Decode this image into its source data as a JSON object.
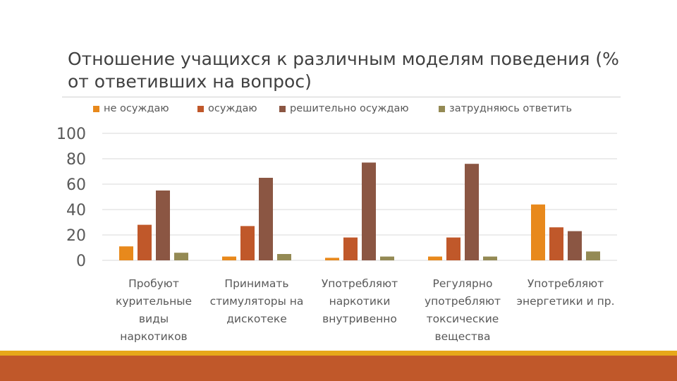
{
  "slide": {
    "title": "Отношение учащихся к различным моделям поведения (% от ответивших на вопрос)"
  },
  "colors": {
    "series": [
      "#e8891c",
      "#c0582a",
      "#8b5643",
      "#948a54"
    ],
    "grid": "#d9d9d9",
    "axis_text": "#595959",
    "accent_bar": "#e7a81a",
    "footer": "#c0582a"
  },
  "chart_data": {
    "type": "bar",
    "title": "",
    "xlabel": "",
    "ylabel": "",
    "ylim": [
      0,
      100
    ],
    "yticks": [
      0,
      20,
      40,
      60,
      80,
      100
    ],
    "grid": true,
    "legend_position": "top",
    "categories": [
      "Пробуют курительные виды наркотиков",
      "Принимать стимуляторы на дискотеке",
      "Употребляют наркотики внутривенно",
      "Регулярно употребляют токсические вещества",
      "Употребляют энергетики и пр."
    ],
    "category_lines": [
      [
        "Пробуют",
        "курительные",
        "виды",
        "наркотиков"
      ],
      [
        "Принимать",
        "стимуляторы на",
        "дискотеке"
      ],
      [
        "Употребляют",
        "наркотики",
        "внутривенно"
      ],
      [
        "Регулярно",
        "употребляют",
        "токсические",
        "вещества"
      ],
      [
        "Употребляют",
        "энергетики и пр."
      ]
    ],
    "series": [
      {
        "name": "не осуждаю",
        "values": [
          11,
          3,
          2,
          3,
          44
        ]
      },
      {
        "name": "осуждаю",
        "values": [
          28,
          27,
          18,
          18,
          26
        ]
      },
      {
        "name": "решительно осуждаю",
        "values": [
          55,
          65,
          77,
          76,
          23
        ]
      },
      {
        "name": "затрудняюсь ответить",
        "values": [
          6,
          5,
          3,
          3,
          7
        ]
      }
    ]
  }
}
